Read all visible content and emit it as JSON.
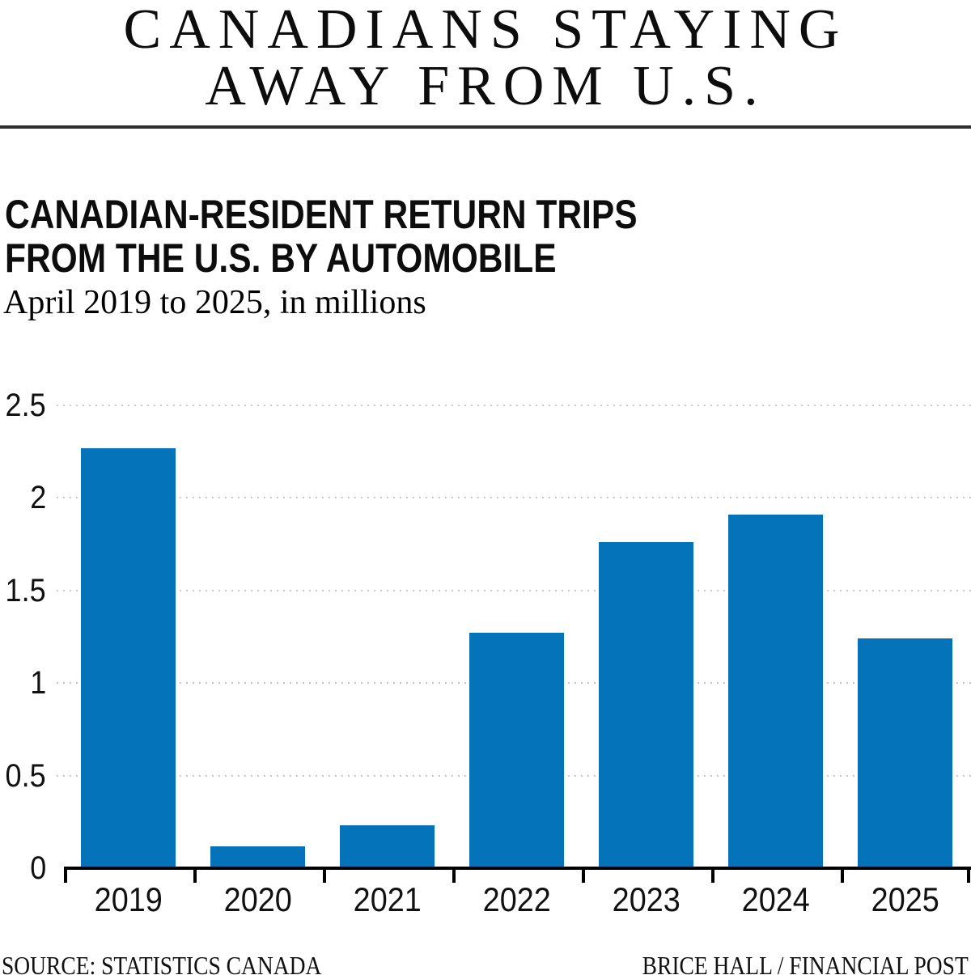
{
  "masthead": {
    "title_line1": "CANADIANS STAYING",
    "title_line2": "AWAY FROM U.S."
  },
  "chart_header": {
    "heading_line1": "CANADIAN-RESIDENT RETURN TRIPS",
    "heading_line2": "FROM THE U.S. BY AUTOMOBILE",
    "subtitle": "April 2019 to 2025, in millions"
  },
  "chart_data": {
    "type": "bar",
    "title": "CANADIAN-RESIDENT RETURN TRIPS FROM THE U.S. BY AUTOMOBILE",
    "subtitle": "April 2019 to 2025, in millions",
    "categories": [
      "2019",
      "2020",
      "2021",
      "2022",
      "2023",
      "2024",
      "2025"
    ],
    "values": [
      2.27,
      0.12,
      0.23,
      1.27,
      1.76,
      1.91,
      1.24
    ],
    "xlabel": "",
    "ylabel": "",
    "ylim": [
      0,
      2.5
    ],
    "ytick_step": 0.5,
    "ytick_labels": [
      "0",
      "0.5",
      "1",
      "1.5",
      "2",
      "2.5"
    ],
    "grid": "horizontal-dotted",
    "legend": "none",
    "bar_color": "#0473b9"
  },
  "footer": {
    "source": "SOURCE: STATISTICS CANADA",
    "credit": "BRICE HALL / FINANCIAL POST"
  },
  "colors": {
    "bar": "#0473b9",
    "axis": "#000000",
    "gridline": "#c9c9c9",
    "divider": "#2f2f2f",
    "text": "#0d0d0d"
  }
}
